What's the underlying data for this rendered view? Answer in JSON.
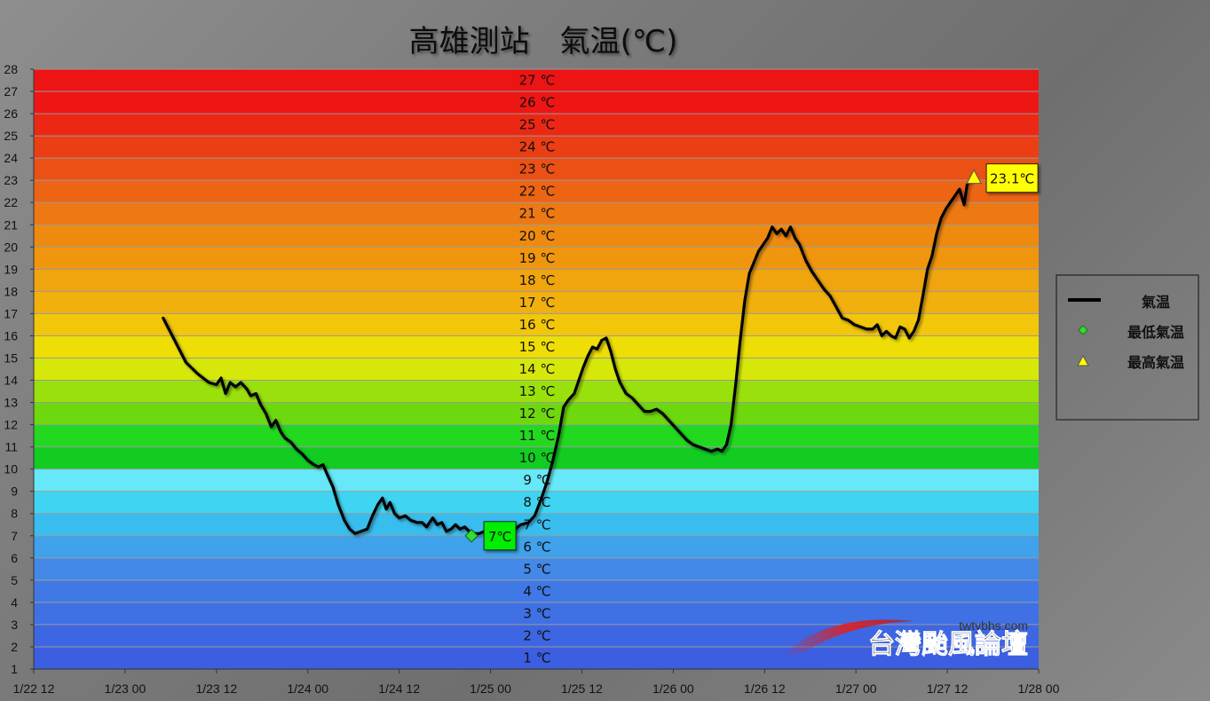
{
  "colors": {
    "line": "#000000",
    "min_marker": "#33dd33",
    "max_marker": "#ffff00",
    "min_label_bg": "#00ee00",
    "max_label_bg": "#ffff00"
  },
  "watermark": {
    "site": "twtybbs.com",
    "name": "台灣颱風論壇"
  },
  "chart_data": {
    "type": "line",
    "title": "高雄測站　氣温(℃)",
    "xlabel": "",
    "ylabel": "",
    "ylim": [
      1,
      28
    ],
    "yticks": [
      1,
      2,
      3,
      4,
      5,
      6,
      7,
      8,
      9,
      10,
      11,
      12,
      13,
      14,
      15,
      16,
      17,
      18,
      19,
      20,
      21,
      22,
      23,
      24,
      25,
      26,
      27,
      28
    ],
    "x_range_hours": [
      0,
      132
    ],
    "x_ticks": [
      {
        "hour": 0,
        "label": "1/22 12"
      },
      {
        "hour": 12,
        "label": "1/23 00"
      },
      {
        "hour": 24,
        "label": "1/23 12"
      },
      {
        "hour": 36,
        "label": "1/24 00"
      },
      {
        "hour": 48,
        "label": "1/24 12"
      },
      {
        "hour": 60,
        "label": "1/25 00"
      },
      {
        "hour": 72,
        "label": "1/25 12"
      },
      {
        "hour": 84,
        "label": "1/26 00"
      },
      {
        "hour": 96,
        "label": "1/26 12"
      },
      {
        "hour": 108,
        "label": "1/27 00"
      },
      {
        "hour": 120,
        "label": "1/27 12"
      },
      {
        "hour": 132,
        "label": "1/28 00"
      }
    ],
    "bands": [
      {
        "label": "1 ℃",
        "color": "#3b5fe0"
      },
      {
        "label": "2 ℃",
        "color": "#3d66e2"
      },
      {
        "label": "3 ℃",
        "color": "#3f70e4"
      },
      {
        "label": "4 ℃",
        "color": "#4079e6"
      },
      {
        "label": "5 ℃",
        "color": "#4488e8"
      },
      {
        "label": "6 ℃",
        "color": "#3fa2ea"
      },
      {
        "label": "7 ℃",
        "color": "#38bdee"
      },
      {
        "label": "8 ℃",
        "color": "#3fd5f2"
      },
      {
        "label": "9 ℃",
        "color": "#66e8f8"
      },
      {
        "label": "10 ℃",
        "color": "#12cc22"
      },
      {
        "label": "11 ℃",
        "color": "#22d920"
      },
      {
        "label": "12 ℃",
        "color": "#6ed80e"
      },
      {
        "label": "13 ℃",
        "color": "#9ae00c"
      },
      {
        "label": "14 ℃",
        "color": "#d6e80a"
      },
      {
        "label": "15 ℃",
        "color": "#eede06"
      },
      {
        "label": "16 ℃",
        "color": "#f2c60a"
      },
      {
        "label": "17 ℃",
        "color": "#f1b00e"
      },
      {
        "label": "18 ℃",
        "color": "#f0a40e"
      },
      {
        "label": "19 ℃",
        "color": "#f0960e"
      },
      {
        "label": "20 ℃",
        "color": "#ef8a10"
      },
      {
        "label": "21 ℃",
        "color": "#ee7812"
      },
      {
        "label": "22 ℃",
        "color": "#ec6414"
      },
      {
        "label": "23 ℃",
        "color": "#eb5014"
      },
      {
        "label": "24 ℃",
        "color": "#eb3e14"
      },
      {
        "label": "25 ℃",
        "color": "#ec2814"
      },
      {
        "label": "26 ℃",
        "color": "#ed1614"
      },
      {
        "label": "27 ℃",
        "color": "#ec1414"
      }
    ],
    "series": [
      {
        "name": "氣温",
        "points": [
          [
            17.0,
            16.8
          ],
          [
            18.5,
            15.8
          ],
          [
            20.0,
            14.8
          ],
          [
            21.5,
            14.3
          ],
          [
            23.0,
            13.9
          ],
          [
            24.0,
            13.8
          ],
          [
            24.6,
            14.1
          ],
          [
            25.2,
            13.4
          ],
          [
            25.8,
            13.9
          ],
          [
            26.5,
            13.7
          ],
          [
            27.2,
            13.9
          ],
          [
            28.0,
            13.6
          ],
          [
            28.5,
            13.3
          ],
          [
            29.2,
            13.4
          ],
          [
            29.8,
            12.9
          ],
          [
            30.5,
            12.5
          ],
          [
            31.2,
            11.9
          ],
          [
            31.8,
            12.2
          ],
          [
            32.4,
            11.7
          ],
          [
            33.0,
            11.4
          ],
          [
            33.8,
            11.2
          ],
          [
            34.5,
            10.9
          ],
          [
            35.2,
            10.7
          ],
          [
            36.0,
            10.4
          ],
          [
            36.8,
            10.2
          ],
          [
            37.4,
            10.1
          ],
          [
            38.0,
            10.2
          ],
          [
            38.5,
            9.8
          ],
          [
            39.3,
            9.2
          ],
          [
            40.0,
            8.4
          ],
          [
            40.8,
            7.7
          ],
          [
            41.5,
            7.3
          ],
          [
            42.2,
            7.1
          ],
          [
            43.0,
            7.2
          ],
          [
            43.8,
            7.3
          ],
          [
            44.5,
            7.9
          ],
          [
            45.2,
            8.4
          ],
          [
            45.8,
            8.7
          ],
          [
            46.3,
            8.2
          ],
          [
            46.8,
            8.5
          ],
          [
            47.4,
            8.0
          ],
          [
            48.0,
            7.8
          ],
          [
            48.8,
            7.9
          ],
          [
            49.5,
            7.7
          ],
          [
            50.3,
            7.6
          ],
          [
            51.0,
            7.6
          ],
          [
            51.6,
            7.4
          ],
          [
            52.4,
            7.8
          ],
          [
            53.0,
            7.5
          ],
          [
            53.6,
            7.6
          ],
          [
            54.2,
            7.2
          ],
          [
            54.8,
            7.3
          ],
          [
            55.4,
            7.5
          ],
          [
            56.0,
            7.3
          ],
          [
            56.6,
            7.4
          ],
          [
            57.2,
            7.2
          ],
          [
            57.8,
            7.1
          ],
          [
            58.5,
            7.1
          ],
          [
            59.2,
            7.2
          ],
          [
            60.0,
            7.1
          ],
          [
            60.8,
            7.0
          ],
          [
            61.6,
            7.0
          ],
          [
            62.4,
            7.2
          ],
          [
            63.2,
            7.3
          ],
          [
            64.0,
            7.5
          ],
          [
            65.0,
            7.6
          ],
          [
            65.8,
            7.9
          ],
          [
            66.6,
            8.6
          ],
          [
            67.4,
            9.4
          ],
          [
            68.2,
            10.4
          ],
          [
            69.0,
            11.6
          ],
          [
            69.6,
            12.8
          ],
          [
            70.2,
            13.1
          ],
          [
            71.0,
            13.4
          ],
          [
            71.6,
            14.0
          ],
          [
            72.2,
            14.6
          ],
          [
            72.8,
            15.1
          ],
          [
            73.4,
            15.5
          ],
          [
            74.0,
            15.4
          ],
          [
            74.6,
            15.8
          ],
          [
            75.2,
            15.9
          ],
          [
            75.8,
            15.3
          ],
          [
            76.4,
            14.5
          ],
          [
            77.0,
            13.9
          ],
          [
            77.8,
            13.4
          ],
          [
            78.6,
            13.2
          ],
          [
            79.4,
            12.9
          ],
          [
            80.2,
            12.6
          ],
          [
            81.0,
            12.6
          ],
          [
            81.8,
            12.7
          ],
          [
            82.6,
            12.5
          ],
          [
            83.4,
            12.2
          ],
          [
            84.2,
            11.9
          ],
          [
            85.0,
            11.6
          ],
          [
            85.8,
            11.3
          ],
          [
            86.6,
            11.1
          ],
          [
            87.4,
            11.0
          ],
          [
            88.2,
            10.9
          ],
          [
            89.0,
            10.8
          ],
          [
            89.8,
            10.9
          ],
          [
            90.4,
            10.8
          ],
          [
            91.0,
            11.1
          ],
          [
            91.6,
            12.0
          ],
          [
            92.2,
            13.8
          ],
          [
            92.8,
            15.8
          ],
          [
            93.4,
            17.6
          ],
          [
            94.0,
            18.8
          ],
          [
            94.6,
            19.3
          ],
          [
            95.2,
            19.8
          ],
          [
            95.8,
            20.1
          ],
          [
            96.4,
            20.4
          ],
          [
            97.0,
            20.9
          ],
          [
            97.6,
            20.6
          ],
          [
            98.2,
            20.8
          ],
          [
            98.8,
            20.5
          ],
          [
            99.4,
            20.9
          ],
          [
            100.0,
            20.4
          ],
          [
            100.6,
            20.1
          ],
          [
            101.4,
            19.4
          ],
          [
            102.2,
            18.9
          ],
          [
            103.0,
            18.5
          ],
          [
            103.8,
            18.1
          ],
          [
            104.6,
            17.8
          ],
          [
            105.4,
            17.3
          ],
          [
            106.2,
            16.8
          ],
          [
            107.0,
            16.7
          ],
          [
            107.8,
            16.5
          ],
          [
            108.6,
            16.4
          ],
          [
            109.4,
            16.3
          ],
          [
            110.2,
            16.3
          ],
          [
            110.8,
            16.5
          ],
          [
            111.4,
            16.0
          ],
          [
            112.0,
            16.2
          ],
          [
            112.6,
            16.0
          ],
          [
            113.2,
            15.9
          ],
          [
            113.8,
            16.4
          ],
          [
            114.4,
            16.3
          ],
          [
            115.0,
            15.9
          ],
          [
            115.6,
            16.2
          ],
          [
            116.2,
            16.7
          ],
          [
            116.8,
            17.8
          ],
          [
            117.4,
            19.0
          ],
          [
            118.0,
            19.6
          ],
          [
            118.6,
            20.6
          ],
          [
            119.2,
            21.3
          ],
          [
            119.8,
            21.7
          ],
          [
            120.4,
            22.0
          ],
          [
            121.0,
            22.3
          ],
          [
            121.6,
            22.6
          ],
          [
            122.2,
            21.9
          ],
          [
            122.6,
            22.8
          ],
          [
            123.2,
            23.1
          ]
        ]
      }
    ],
    "min": {
      "hour": 57.5,
      "value": 7.0,
      "label": "7℃",
      "name": "最低氣温"
    },
    "max": {
      "hour": 123.5,
      "value": 23.1,
      "label": "23.1℃",
      "name": "最高氣温"
    },
    "legend": {
      "placement": "right",
      "entries": [
        {
          "label": "氣温",
          "symbol": "line"
        },
        {
          "label": "最低氣温",
          "symbol": "diamond"
        },
        {
          "label": "最高氣温",
          "symbol": "triangle"
        }
      ]
    },
    "grid": true
  }
}
